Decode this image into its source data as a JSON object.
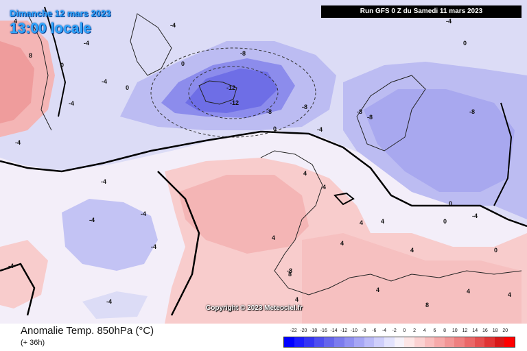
{
  "header": {
    "date": "Dimanche 12 mars 2023",
    "time": "13:00 locale",
    "run": "Run GFS 0 Z du Samedi 11 mars 2023"
  },
  "map": {
    "copyright": "Copyright © 2023 Meteociel.fr",
    "contour_labels": [
      "-12",
      "-12",
      "-8",
      "-8",
      "-8",
      "-8",
      "-8",
      "-8",
      "-8",
      "-4",
      "-4",
      "-4",
      "-4",
      "-4",
      "-4",
      "-4",
      "-4",
      "-4",
      "-4",
      "-4",
      "-4",
      "-4",
      "-4",
      "0",
      "0",
      "0",
      "0",
      "0",
      "0",
      "0",
      "0",
      "4",
      "4",
      "4",
      "4",
      "4",
      "4",
      "4",
      "4",
      "4",
      "4",
      "4",
      "4",
      "8",
      "8",
      "8"
    ]
  },
  "footer": {
    "title": "Anomalie Temp. 850hPa (°C)",
    "subtitle": "(+ 36h)"
  },
  "legend": {
    "labels": [
      "-22",
      "-20",
      "-18",
      "-16",
      "-14",
      "-12",
      "-10",
      "-8",
      "-6",
      "-4",
      "-2",
      "0",
      "2",
      "4",
      "6",
      "8",
      "10",
      "12",
      "14",
      "16",
      "18",
      "20"
    ],
    "colors": [
      "#0000ff",
      "#1c1cff",
      "#3434f4",
      "#4e4ef0",
      "#6565ec",
      "#7b7bee",
      "#9090f2",
      "#a6a6f5",
      "#bbbbf8",
      "#cfcffb",
      "#e3e3fd",
      "#f6f2fa",
      "#fde6e6",
      "#fbd2d2",
      "#f9bebe",
      "#f6aaaa",
      "#f29696",
      "#ee8080",
      "#ea6868",
      "#e54f4f",
      "#e03434",
      "#d81818",
      "#ff0000"
    ]
  }
}
